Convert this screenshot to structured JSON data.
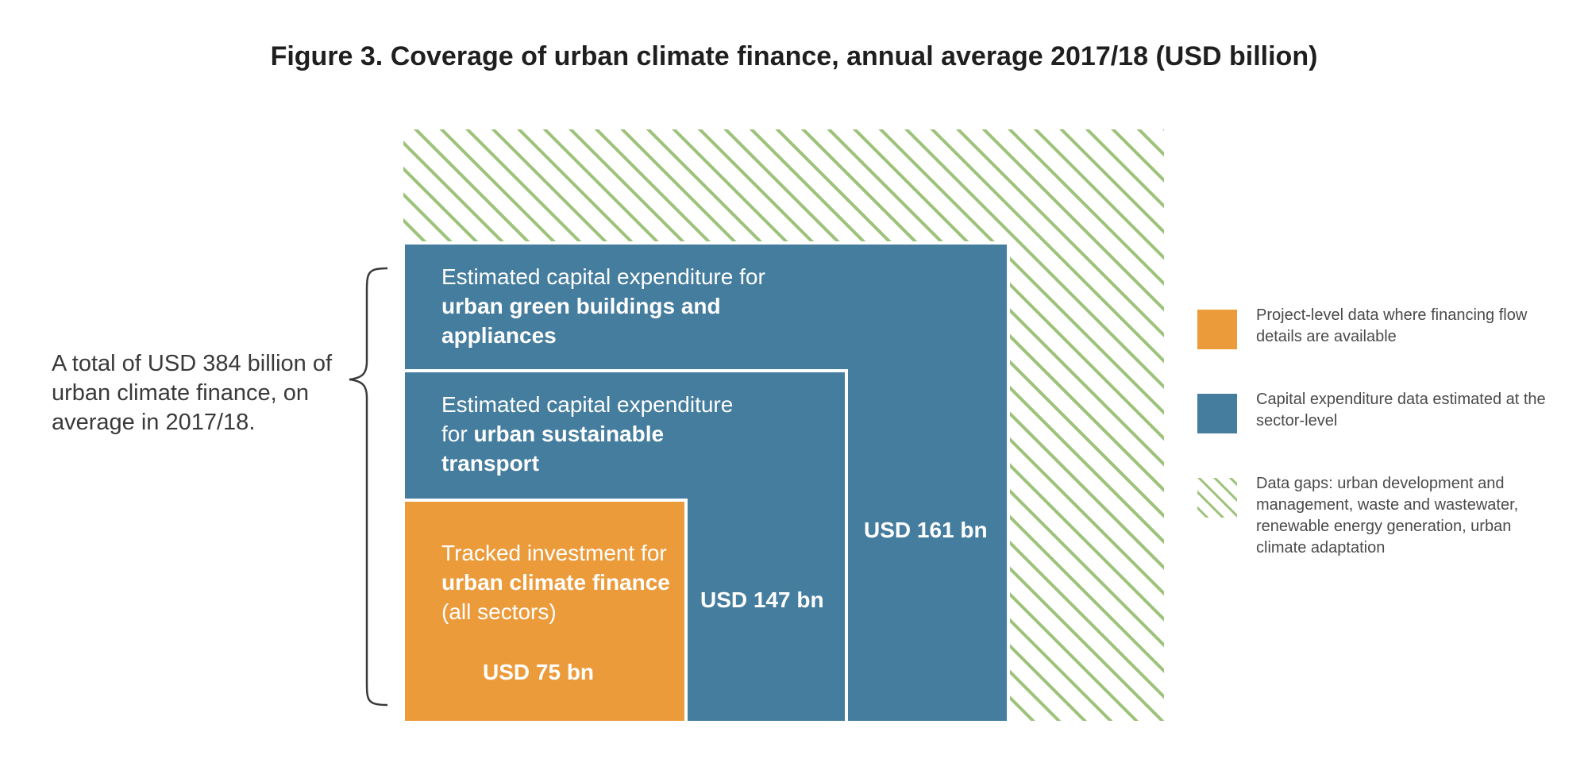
{
  "title": "Figure 3. Coverage of urban climate finance, annual average 2017/18 (USD billion)",
  "total_note": "A total of USD 384 billion of urban climate finance, on average in 2017/18.",
  "boxes": {
    "buildings": {
      "text_plain": "Estimated capital expenditure for ",
      "text_bold": "urban green buildings and appliances",
      "amount": "USD 161 bn"
    },
    "transport": {
      "text_plain": "Estimated capital expenditure for ",
      "text_bold": "urban sustainable transport",
      "amount": "USD 147 bn"
    },
    "tracked": {
      "text_plain": "Tracked investment for ",
      "text_bold": "urban climate finance",
      "text_suffix": " (all sectors)",
      "amount": "USD 75 bn"
    }
  },
  "legend": [
    {
      "label": "Project-level data where financing flow details are available",
      "color": "#ec9b3b",
      "pattern": "solid"
    },
    {
      "label": "Capital expenditure data estimated at the sector-level",
      "color": "#457d9e",
      "pattern": "solid"
    },
    {
      "label": "Data gaps: urban development and management, waste and wastewater, renewable energy generation, urban climate adaptation",
      "color": "#9dc27a",
      "pattern": "hatched"
    }
  ],
  "colors": {
    "orange": "#ec9b3b",
    "blue": "#457d9e",
    "hatch": "#9dc27a",
    "divider": "#ffffff"
  }
}
